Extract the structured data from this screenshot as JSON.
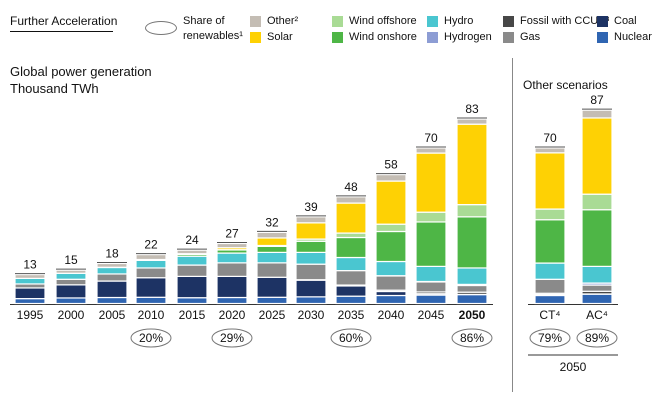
{
  "header": {
    "scenario_tab": "Further Acceleration",
    "renewables_key": "Share of\nrenewables¹"
  },
  "legend": [
    {
      "label": "Other²",
      "color": "#c4bdb4"
    },
    {
      "label": "Solar",
      "color": "#fed104"
    },
    {
      "label": "Wind offshore",
      "color": "#a9db95"
    },
    {
      "label": "Wind onshore",
      "color": "#4eb646"
    },
    {
      "label": "Hydro",
      "color": "#4ac6d0"
    },
    {
      "label": "Hydrogen",
      "color": "#8d9dd4"
    },
    {
      "label": "Fossil with CCUS³",
      "color": "#474747"
    },
    {
      "label": "Gas",
      "color": "#8a8a8a"
    },
    {
      "label": "Coal",
      "color": "#1d3364"
    },
    {
      "label": "Nuclear",
      "color": "#2f65b2"
    }
  ],
  "chart_data": {
    "type": "bar",
    "stacked": true,
    "title": "Global power generation",
    "subtitle": "Thousand TWh",
    "right_panel_title": "Other scenarios",
    "right_panel_group_label": "2050",
    "categories": [
      "1995",
      "2000",
      "2005",
      "2010",
      "2015",
      "2020",
      "2025",
      "2030",
      "2035",
      "2040",
      "2045",
      "2050",
      "CT⁴",
      "AC⁴"
    ],
    "totals": [
      13,
      15,
      18,
      22,
      24,
      27,
      32,
      39,
      48,
      58,
      70,
      83,
      70,
      87
    ],
    "renewable_share": [
      "",
      "",
      "",
      "20%",
      "",
      "29%",
      "",
      "",
      "60%",
      "",
      "",
      "86%",
      "79%",
      "89%"
    ],
    "bold_categories": [
      "2050"
    ],
    "ylim": [
      0,
      90
    ],
    "series": [
      {
        "name": "Nuclear",
        "color": "#2f65b2",
        "values": [
          2.2,
          2.5,
          2.7,
          2.8,
          2.6,
          2.7,
          2.8,
          3.0,
          3.3,
          3.6,
          3.8,
          4.0,
          3.6,
          4.2
        ]
      },
      {
        "name": "Coal",
        "color": "#1d3364",
        "values": [
          4.8,
          5.9,
          7.4,
          8.8,
          9.6,
          9.5,
          9.0,
          7.5,
          4.6,
          1.8,
          0.6,
          0.1,
          0.4,
          0.1
        ]
      },
      {
        "name": "Fossil with CCUS³",
        "color": "#474747",
        "values": [
          0,
          0,
          0,
          0,
          0,
          0,
          0,
          0.2,
          0.4,
          0.6,
          0.8,
          1.0,
          0.6,
          1.2
        ]
      },
      {
        "name": "Gas",
        "color": "#8a8a8a",
        "values": [
          1.8,
          2.5,
          3.2,
          4.4,
          5.1,
          6.1,
          6.5,
          7.0,
          6.5,
          6.4,
          4.5,
          3.0,
          6.3,
          2.8
        ]
      },
      {
        "name": "Hydrogen",
        "color": "#8d9dd4",
        "values": [
          0,
          0,
          0,
          0,
          0,
          0,
          0,
          0,
          0,
          0.1,
          0.2,
          0.5,
          0,
          0.9
        ]
      },
      {
        "name": "Hydro",
        "color": "#4ac6d0",
        "values": [
          2.5,
          2.7,
          2.9,
          3.4,
          4.0,
          4.4,
          4.7,
          5.3,
          5.9,
          6.4,
          6.8,
          7.4,
          7.3,
          7.5
        ]
      },
      {
        "name": "Wind onshore",
        "color": "#4eb646",
        "values": [
          0,
          0,
          0.1,
          0.3,
          0.8,
          1.4,
          2.7,
          5.0,
          9.0,
          13.5,
          20.0,
          23.0,
          19.5,
          25.5
        ]
      },
      {
        "name": "Wind offshore",
        "color": "#a9db95",
        "values": [
          0,
          0,
          0,
          0,
          0,
          0.1,
          0.4,
          1.0,
          2.0,
          3.3,
          4.4,
          5.5,
          4.8,
          7.0
        ]
      },
      {
        "name": "Solar",
        "color": "#fed104",
        "values": [
          0,
          0,
          0,
          0.1,
          0.3,
          0.9,
          3.4,
          7.3,
          13.5,
          19.4,
          26.6,
          36.2,
          25.3,
          34.3
        ]
      },
      {
        "name": "Other²",
        "color": "#c4bdb4",
        "values": [
          1.7,
          1.4,
          1.7,
          2.2,
          1.6,
          1.9,
          2.5,
          2.7,
          2.8,
          2.9,
          2.3,
          2.3,
          2.2,
          3.5
        ]
      }
    ]
  }
}
